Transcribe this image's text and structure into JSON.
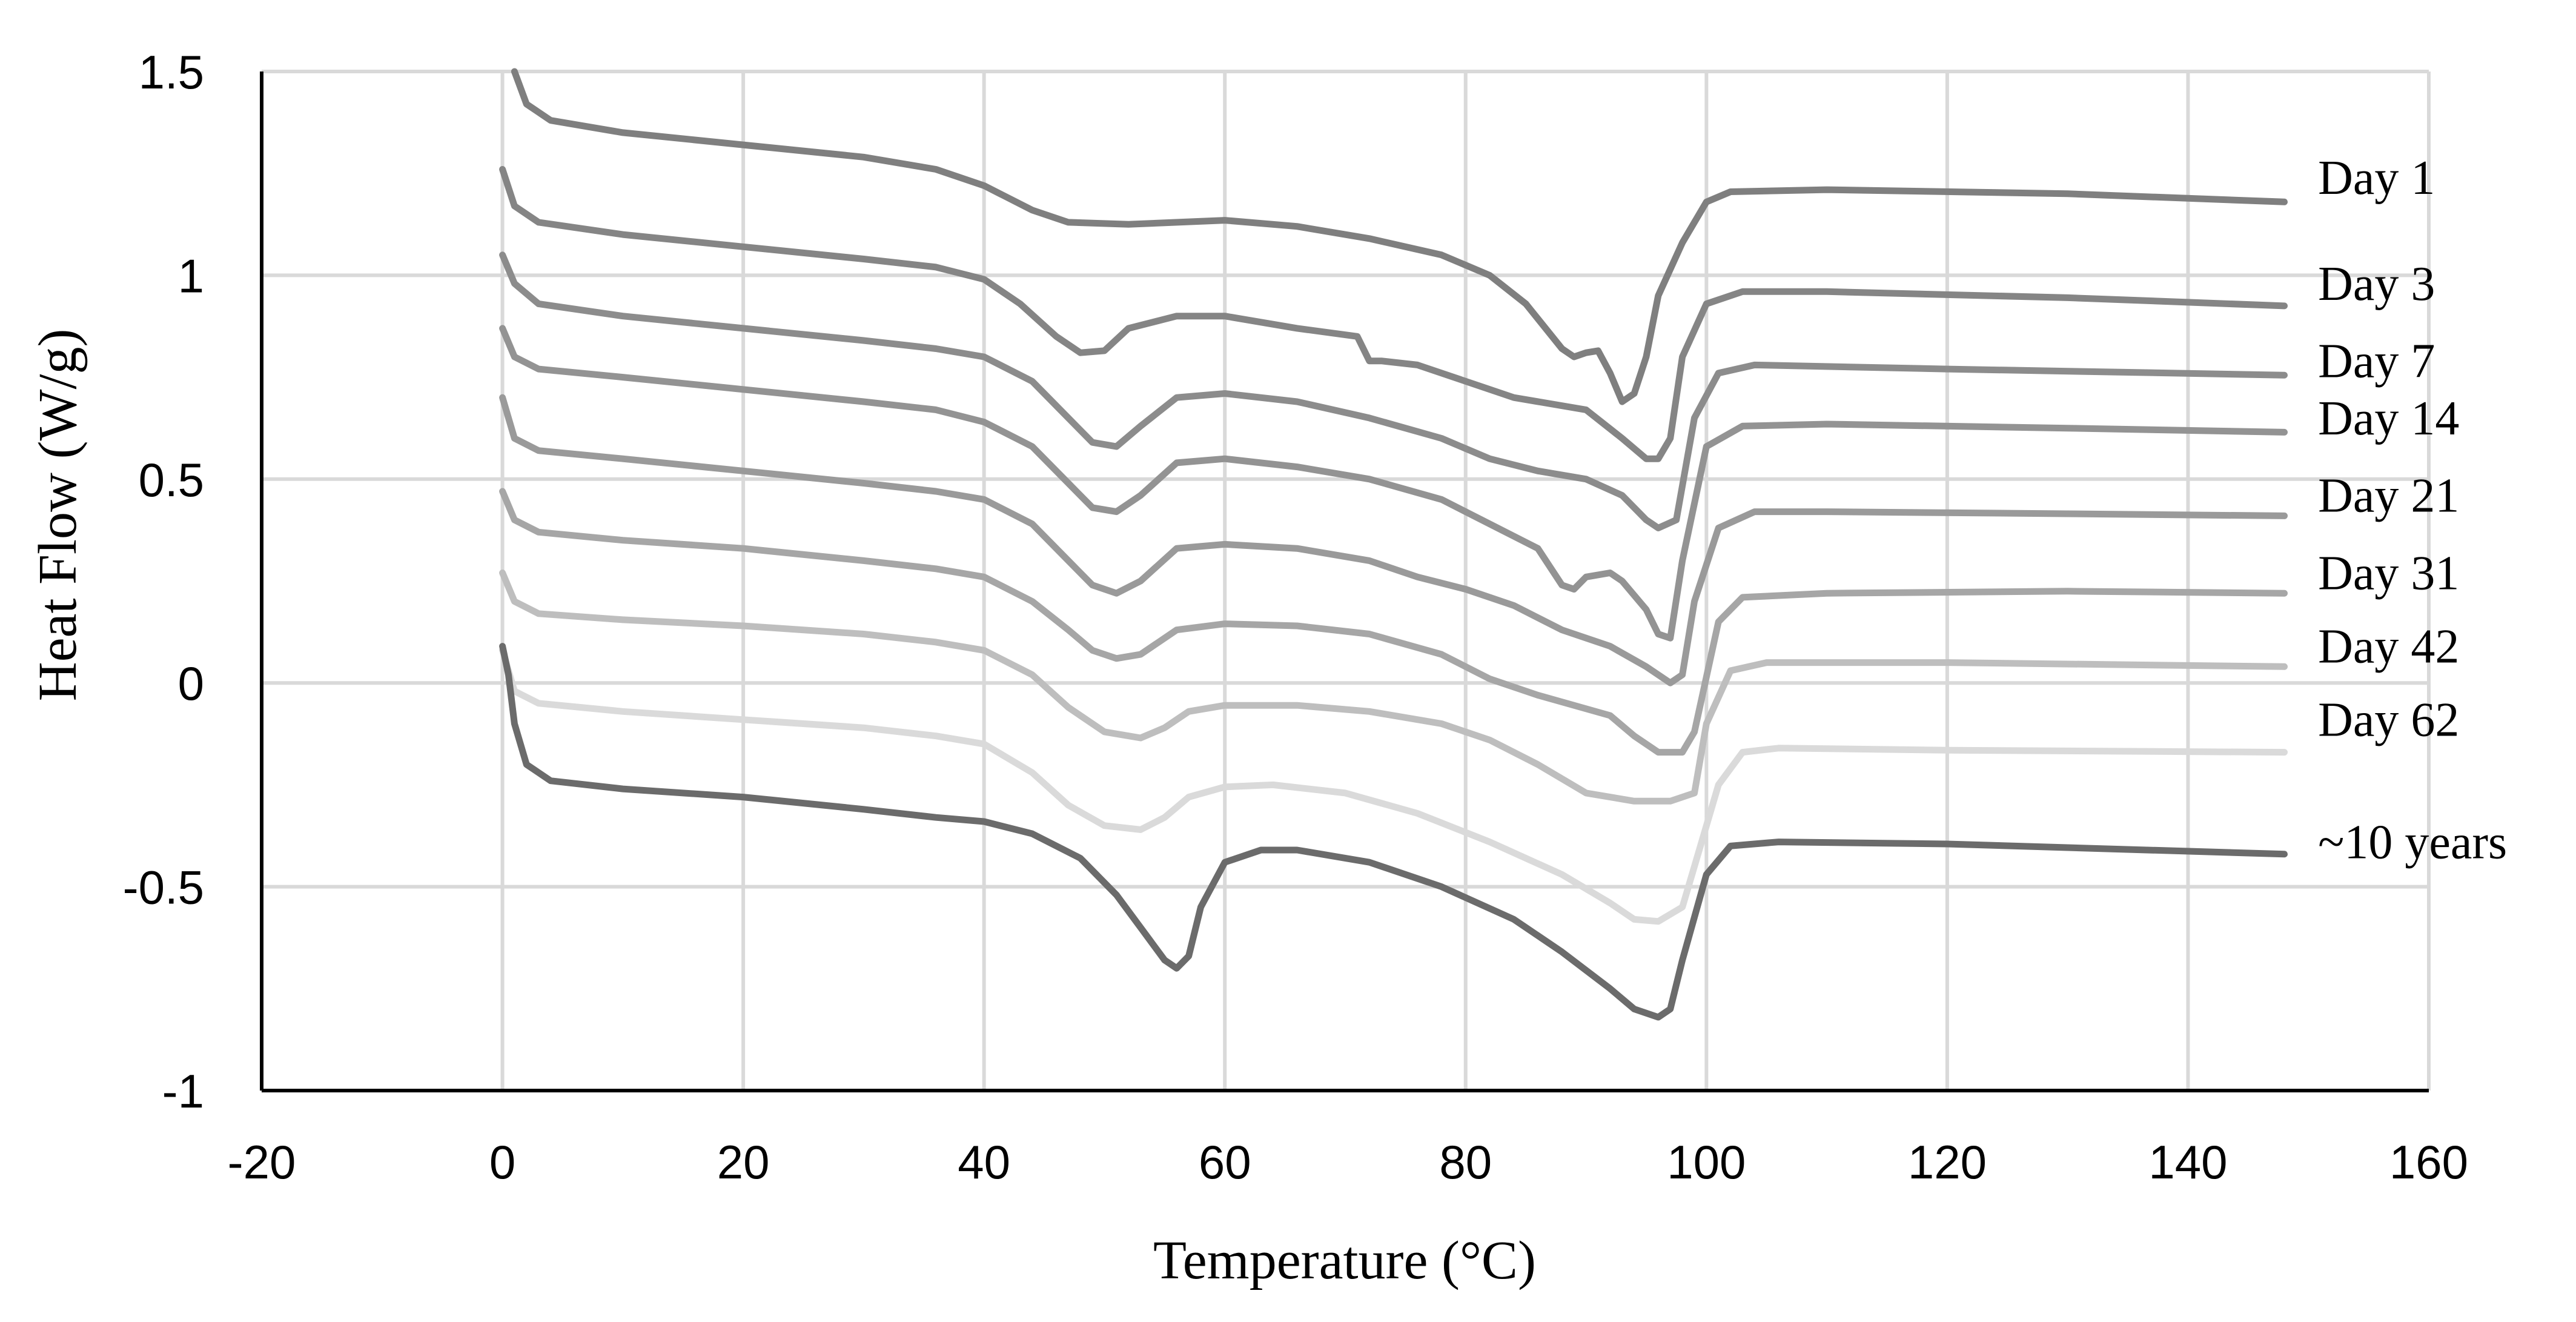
{
  "chart_data": {
    "type": "line",
    "title": "",
    "xlabel": "Temperature (°C)",
    "ylabel": "Heat  Flow (W/g)",
    "xlim": [
      -20,
      160
    ],
    "ylim": [
      -1,
      1.5
    ],
    "x_ticks": [
      -20,
      0,
      20,
      40,
      60,
      80,
      100,
      120,
      140,
      160
    ],
    "y_ticks": [
      -1,
      -0.5,
      0,
      0.5,
      1,
      1.5
    ],
    "x_tick_labels": [
      "-20",
      "0",
      "20",
      "40",
      "60",
      "80",
      "100",
      "120",
      "140",
      "160"
    ],
    "y_tick_labels": [
      "-1",
      "-0.5",
      "0",
      "0.5",
      "1",
      "1.5"
    ],
    "grid": true,
    "series": [
      {
        "name": "Day 1",
        "label": "Day 1",
        "color": "#7f7f7f",
        "label_y": 1.2,
        "points": [
          [
            1,
            1.5
          ],
          [
            2,
            1.42
          ],
          [
            4,
            1.38
          ],
          [
            10,
            1.35
          ],
          [
            20,
            1.32
          ],
          [
            30,
            1.29
          ],
          [
            36,
            1.26
          ],
          [
            40,
            1.22
          ],
          [
            44,
            1.16
          ],
          [
            47,
            1.13
          ],
          [
            52,
            1.125
          ],
          [
            60,
            1.135
          ],
          [
            66,
            1.12
          ],
          [
            72,
            1.09
          ],
          [
            78,
            1.05
          ],
          [
            82,
            1.0
          ],
          [
            85,
            0.93
          ],
          [
            88,
            0.82
          ],
          [
            89,
            0.8
          ],
          [
            90,
            0.81
          ],
          [
            91,
            0.815
          ],
          [
            92,
            0.76
          ],
          [
            93,
            0.69
          ],
          [
            94,
            0.71
          ],
          [
            95,
            0.8
          ],
          [
            96,
            0.95
          ],
          [
            98,
            1.08
          ],
          [
            100,
            1.18
          ],
          [
            102,
            1.205
          ],
          [
            110,
            1.21
          ],
          [
            130,
            1.2
          ],
          [
            148,
            1.18
          ]
        ]
      },
      {
        "name": "Day 3",
        "label": "Day 3",
        "color": "#858585",
        "label_y": 0.94,
        "points": [
          [
            0,
            1.26
          ],
          [
            1,
            1.17
          ],
          [
            3,
            1.13
          ],
          [
            10,
            1.1
          ],
          [
            20,
            1.07
          ],
          [
            30,
            1.04
          ],
          [
            36,
            1.02
          ],
          [
            40,
            0.99
          ],
          [
            43,
            0.93
          ],
          [
            46,
            0.85
          ],
          [
            48,
            0.81
          ],
          [
            50,
            0.815
          ],
          [
            52,
            0.87
          ],
          [
            56,
            0.9
          ],
          [
            60,
            0.9
          ],
          [
            66,
            0.87
          ],
          [
            71,
            0.85
          ],
          [
            72,
            0.79
          ],
          [
            73,
            0.79
          ],
          [
            76,
            0.78
          ],
          [
            80,
            0.74
          ],
          [
            84,
            0.7
          ],
          [
            90,
            0.67
          ],
          [
            93,
            0.6
          ],
          [
            95,
            0.55
          ],
          [
            96,
            0.55
          ],
          [
            97,
            0.6
          ],
          [
            98,
            0.8
          ],
          [
            100,
            0.93
          ],
          [
            103,
            0.96
          ],
          [
            110,
            0.96
          ],
          [
            130,
            0.945
          ],
          [
            148,
            0.925
          ]
        ]
      },
      {
        "name": "Day 7",
        "label": "Day 7",
        "color": "#8c8c8c",
        "label_y": 0.75,
        "points": [
          [
            0,
            1.05
          ],
          [
            1,
            0.98
          ],
          [
            3,
            0.93
          ],
          [
            10,
            0.9
          ],
          [
            20,
            0.87
          ],
          [
            30,
            0.84
          ],
          [
            36,
            0.82
          ],
          [
            40,
            0.8
          ],
          [
            44,
            0.74
          ],
          [
            47,
            0.65
          ],
          [
            49,
            0.59
          ],
          [
            51,
            0.58
          ],
          [
            53,
            0.63
          ],
          [
            56,
            0.7
          ],
          [
            60,
            0.71
          ],
          [
            66,
            0.69
          ],
          [
            72,
            0.65
          ],
          [
            78,
            0.6
          ],
          [
            82,
            0.55
          ],
          [
            86,
            0.52
          ],
          [
            90,
            0.5
          ],
          [
            93,
            0.46
          ],
          [
            95,
            0.4
          ],
          [
            96,
            0.38
          ],
          [
            97.5,
            0.4
          ],
          [
            99,
            0.65
          ],
          [
            101,
            0.76
          ],
          [
            104,
            0.78
          ],
          [
            120,
            0.77
          ],
          [
            148,
            0.755
          ]
        ]
      },
      {
        "name": "Day 14",
        "label": "Day 14",
        "color": "#939393",
        "label_y": 0.61,
        "points": [
          [
            0,
            0.87
          ],
          [
            1,
            0.8
          ],
          [
            3,
            0.77
          ],
          [
            10,
            0.75
          ],
          [
            20,
            0.72
          ],
          [
            30,
            0.69
          ],
          [
            36,
            0.67
          ],
          [
            40,
            0.64
          ],
          [
            44,
            0.58
          ],
          [
            47,
            0.49
          ],
          [
            49,
            0.43
          ],
          [
            51,
            0.42
          ],
          [
            53,
            0.46
          ],
          [
            56,
            0.54
          ],
          [
            60,
            0.55
          ],
          [
            66,
            0.53
          ],
          [
            72,
            0.5
          ],
          [
            78,
            0.45
          ],
          [
            82,
            0.39
          ],
          [
            86,
            0.33
          ],
          [
            88,
            0.24
          ],
          [
            89,
            0.23
          ],
          [
            90,
            0.26
          ],
          [
            92,
            0.27
          ],
          [
            93,
            0.25
          ],
          [
            95,
            0.18
          ],
          [
            96,
            0.12
          ],
          [
            97,
            0.11
          ],
          [
            98,
            0.3
          ],
          [
            100,
            0.58
          ],
          [
            103,
            0.63
          ],
          [
            110,
            0.635
          ],
          [
            130,
            0.625
          ],
          [
            148,
            0.615
          ]
        ]
      },
      {
        "name": "Day 21",
        "label": "Day 21",
        "color": "#9a9a9a",
        "label_y": 0.42,
        "points": [
          [
            0,
            0.7
          ],
          [
            1,
            0.6
          ],
          [
            3,
            0.57
          ],
          [
            10,
            0.55
          ],
          [
            20,
            0.52
          ],
          [
            30,
            0.49
          ],
          [
            36,
            0.47
          ],
          [
            40,
            0.45
          ],
          [
            44,
            0.39
          ],
          [
            47,
            0.3
          ],
          [
            49,
            0.24
          ],
          [
            51,
            0.22
          ],
          [
            53,
            0.25
          ],
          [
            56,
            0.33
          ],
          [
            60,
            0.34
          ],
          [
            66,
            0.33
          ],
          [
            72,
            0.3
          ],
          [
            76,
            0.26
          ],
          [
            80,
            0.23
          ],
          [
            84,
            0.19
          ],
          [
            88,
            0.13
          ],
          [
            92,
            0.09
          ],
          [
            95,
            0.04
          ],
          [
            97,
            0.0
          ],
          [
            98,
            0.02
          ],
          [
            99,
            0.2
          ],
          [
            101,
            0.38
          ],
          [
            104,
            0.42
          ],
          [
            110,
            0.42
          ],
          [
            130,
            0.415
          ],
          [
            148,
            0.41
          ]
        ]
      },
      {
        "name": "Day 31",
        "label": "Day 31",
        "color": "#a6a6a6",
        "label_y": 0.23,
        "points": [
          [
            0,
            0.47
          ],
          [
            1,
            0.4
          ],
          [
            3,
            0.37
          ],
          [
            10,
            0.35
          ],
          [
            20,
            0.33
          ],
          [
            30,
            0.3
          ],
          [
            36,
            0.28
          ],
          [
            40,
            0.26
          ],
          [
            44,
            0.2
          ],
          [
            47,
            0.13
          ],
          [
            49,
            0.08
          ],
          [
            51,
            0.06
          ],
          [
            53,
            0.07
          ],
          [
            56,
            0.13
          ],
          [
            60,
            0.145
          ],
          [
            66,
            0.14
          ],
          [
            72,
            0.12
          ],
          [
            78,
            0.07
          ],
          [
            82,
            0.01
          ],
          [
            86,
            -0.03
          ],
          [
            92,
            -0.08
          ],
          [
            94,
            -0.13
          ],
          [
            96,
            -0.17
          ],
          [
            98,
            -0.17
          ],
          [
            99,
            -0.12
          ],
          [
            101,
            0.15
          ],
          [
            103,
            0.21
          ],
          [
            110,
            0.22
          ],
          [
            130,
            0.225
          ],
          [
            148,
            0.22
          ]
        ]
      },
      {
        "name": "Day 42",
        "label": "Day 42",
        "color": "#bebebe",
        "label_y": 0.05,
        "points": [
          [
            0,
            0.27
          ],
          [
            1,
            0.2
          ],
          [
            3,
            0.17
          ],
          [
            10,
            0.155
          ],
          [
            20,
            0.14
          ],
          [
            30,
            0.12
          ],
          [
            36,
            0.1
          ],
          [
            40,
            0.08
          ],
          [
            44,
            0.02
          ],
          [
            47,
            -0.06
          ],
          [
            50,
            -0.12
          ],
          [
            53,
            -0.135
          ],
          [
            55,
            -0.11
          ],
          [
            57,
            -0.07
          ],
          [
            60,
            -0.055
          ],
          [
            66,
            -0.055
          ],
          [
            72,
            -0.07
          ],
          [
            78,
            -0.1
          ],
          [
            82,
            -0.14
          ],
          [
            86,
            -0.2
          ],
          [
            90,
            -0.27
          ],
          [
            94,
            -0.29
          ],
          [
            97,
            -0.29
          ],
          [
            99,
            -0.27
          ],
          [
            100,
            -0.1
          ],
          [
            102,
            0.03
          ],
          [
            105,
            0.05
          ],
          [
            120,
            0.05
          ],
          [
            148,
            0.04
          ]
        ]
      },
      {
        "name": "Day 62",
        "label": "Day 62",
        "color": "#dadada",
        "label_y": -0.13,
        "points": [
          [
            0,
            0.08
          ],
          [
            1,
            -0.02
          ],
          [
            3,
            -0.05
          ],
          [
            10,
            -0.07
          ],
          [
            20,
            -0.09
          ],
          [
            30,
            -0.11
          ],
          [
            36,
            -0.13
          ],
          [
            40,
            -0.15
          ],
          [
            44,
            -0.22
          ],
          [
            47,
            -0.3
          ],
          [
            50,
            -0.35
          ],
          [
            53,
            -0.36
          ],
          [
            55,
            -0.33
          ],
          [
            57,
            -0.28
          ],
          [
            60,
            -0.255
          ],
          [
            64,
            -0.25
          ],
          [
            70,
            -0.27
          ],
          [
            76,
            -0.32
          ],
          [
            82,
            -0.39
          ],
          [
            88,
            -0.47
          ],
          [
            92,
            -0.54
          ],
          [
            94,
            -0.58
          ],
          [
            96,
            -0.585
          ],
          [
            98,
            -0.55
          ],
          [
            99,
            -0.45
          ],
          [
            101,
            -0.25
          ],
          [
            103,
            -0.17
          ],
          [
            106,
            -0.16
          ],
          [
            120,
            -0.165
          ],
          [
            148,
            -0.17
          ]
        ]
      },
      {
        "name": "~10 years",
        "label": "~10 years",
        "color": "#6b6b6b",
        "label_y": -0.43,
        "points": [
          [
            0,
            0.09
          ],
          [
            0.5,
            0.02
          ],
          [
            1,
            -0.1
          ],
          [
            2,
            -0.2
          ],
          [
            4,
            -0.24
          ],
          [
            10,
            -0.26
          ],
          [
            20,
            -0.28
          ],
          [
            30,
            -0.31
          ],
          [
            36,
            -0.33
          ],
          [
            40,
            -0.34
          ],
          [
            44,
            -0.37
          ],
          [
            48,
            -0.43
          ],
          [
            51,
            -0.52
          ],
          [
            53,
            -0.6
          ],
          [
            55,
            -0.68
          ],
          [
            56,
            -0.7
          ],
          [
            57,
            -0.67
          ],
          [
            58,
            -0.55
          ],
          [
            60,
            -0.44
          ],
          [
            63,
            -0.41
          ],
          [
            66,
            -0.41
          ],
          [
            72,
            -0.44
          ],
          [
            78,
            -0.5
          ],
          [
            84,
            -0.58
          ],
          [
            88,
            -0.66
          ],
          [
            92,
            -0.75
          ],
          [
            94,
            -0.8
          ],
          [
            96,
            -0.82
          ],
          [
            97,
            -0.8
          ],
          [
            98,
            -0.68
          ],
          [
            100,
            -0.47
          ],
          [
            102,
            -0.4
          ],
          [
            106,
            -0.39
          ],
          [
            120,
            -0.395
          ],
          [
            148,
            -0.42
          ]
        ]
      }
    ]
  }
}
